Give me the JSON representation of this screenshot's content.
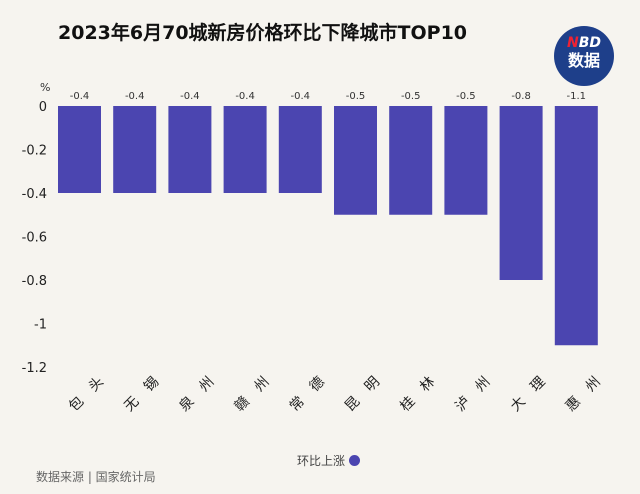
{
  "title": "2023年6月70城新房价格环比下降城市TOP10",
  "logo": {
    "line1_accent": "N",
    "line1_rest": "BD",
    "line2": "数据"
  },
  "source": "数据来源 | 国家统计局",
  "colors": {
    "bar": "#4b45b0",
    "background": "#f6f4ef",
    "logo": "#1e3f8a"
  },
  "chart_data": {
    "type": "bar",
    "title": "2023年6月70城新房价格环比下降城市TOP10",
    "ylabel": "%",
    "categories": [
      "包头",
      "无锡",
      "泉州",
      "赣州",
      "常德",
      "昆明",
      "桂林",
      "泸州",
      "大理",
      "惠州"
    ],
    "series": [
      {
        "name": "环比上涨",
        "values": [
          -0.4,
          -0.4,
          -0.4,
          -0.4,
          -0.4,
          -0.5,
          -0.5,
          -0.5,
          -0.8,
          -1.1
        ]
      }
    ],
    "data_labels": [
      "-0.4",
      "-0.4",
      "-0.4",
      "-0.4",
      "-0.4",
      "-0.5",
      "-0.5",
      "-0.5",
      "-0.8",
      "-1.1"
    ],
    "yticks": [
      "0",
      "-0.2",
      "-0.4",
      "-0.6",
      "-0.8",
      "-1",
      "-1.2"
    ],
    "ylim": [
      -1.2,
      0
    ],
    "grid": false,
    "legend": "bottom"
  }
}
